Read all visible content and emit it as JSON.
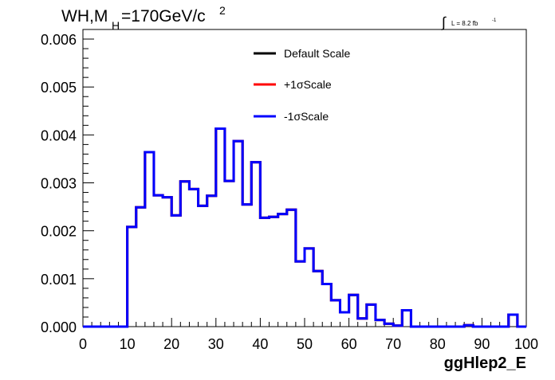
{
  "chart_data": {
    "type": "histogram",
    "title": "WH,M",
    "title_sub": "H",
    "title_rest": "=170GeV/c",
    "title_sup": "2",
    "lumi_integral": "∫",
    "lumi_text": "L = 8.2 fb",
    "lumi_sup": "-1",
    "xlabel": "ggHlep2_E",
    "ylabel": "",
    "xlim": [
      0,
      100
    ],
    "ylim": [
      0,
      0.0062
    ],
    "x_ticks": [
      "0",
      "10",
      "20",
      "30",
      "40",
      "50",
      "60",
      "70",
      "80",
      "90",
      "100"
    ],
    "y_ticks": [
      "0.000",
      "0.001",
      "0.002",
      "0.003",
      "0.004",
      "0.005",
      "0.006"
    ],
    "grid": false,
    "legend_position": "top-center",
    "legend": [
      {
        "name": "Default Scale",
        "color": "#000000"
      },
      {
        "name": "+1σScale",
        "color": "#ff0000"
      },
      {
        "name": "-1σScale",
        "color": "#0000ff"
      }
    ],
    "bin_width": 2,
    "bin_edges_start": 0,
    "series": [
      {
        "name": "Default Scale",
        "color": "#000000",
        "values": [
          0,
          0,
          0,
          0,
          0,
          0.00208,
          0.00249,
          0.00364,
          0.00274,
          0.0027,
          0.00232,
          0.00303,
          0.00287,
          0.00252,
          0.00273,
          0.00413,
          0.00304,
          0.00387,
          0.00255,
          0.00343,
          0.00227,
          0.00229,
          0.00235,
          0.00244,
          0.00136,
          0.00163,
          0.00116,
          0.00089,
          0.00055,
          0.0003,
          0.00066,
          0.00017,
          0.00046,
          0.00014,
          6e-05,
          2e-05,
          0.00034,
          0,
          0,
          0,
          0,
          0,
          0,
          3e-05,
          0,
          0,
          0,
          0,
          0.00025,
          0
        ]
      },
      {
        "name": "+1σScale",
        "color": "#ff0000",
        "values": [
          0,
          0,
          0,
          0,
          0,
          0.00208,
          0.00249,
          0.00364,
          0.00274,
          0.0027,
          0.00232,
          0.00303,
          0.00287,
          0.00252,
          0.00273,
          0.00413,
          0.00304,
          0.00387,
          0.00255,
          0.00343,
          0.00227,
          0.00229,
          0.00235,
          0.00244,
          0.00136,
          0.00163,
          0.00116,
          0.00089,
          0.00055,
          0.0003,
          0.00066,
          0.00017,
          0.00046,
          0.00014,
          6e-05,
          2e-05,
          0.00034,
          0,
          0,
          0,
          0,
          0,
          0,
          3e-05,
          0,
          0,
          0,
          0,
          0.00025,
          0
        ]
      },
      {
        "name": "-1σScale",
        "color": "#0000ff",
        "values": [
          0,
          0,
          0,
          0,
          0,
          0.00208,
          0.00249,
          0.00364,
          0.00274,
          0.0027,
          0.00232,
          0.00303,
          0.00287,
          0.00252,
          0.00273,
          0.00413,
          0.00304,
          0.00387,
          0.00255,
          0.00343,
          0.00227,
          0.00229,
          0.00235,
          0.00244,
          0.00136,
          0.00163,
          0.00116,
          0.00089,
          0.00055,
          0.0003,
          0.00066,
          0.00017,
          0.00046,
          0.00014,
          6e-05,
          2e-05,
          0.00034,
          0,
          0,
          0,
          0,
          0,
          0,
          3e-05,
          0,
          0,
          0,
          0,
          0.00025,
          0
        ]
      }
    ]
  }
}
